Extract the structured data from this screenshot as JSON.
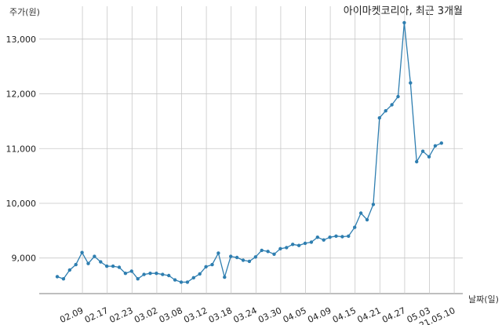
{
  "chart_data": {
    "type": "line",
    "title": "아이마켓코리아, 최근 3개월",
    "ylabel": "주가(원)",
    "xlabel": "날짜(일)",
    "ylim": [
      8350,
      13600
    ],
    "yticks": [
      9000,
      10000,
      11000,
      12000,
      13000
    ],
    "ytick_labels": [
      "9,000",
      "10,000",
      "11,000",
      "12,000",
      "13,000"
    ],
    "xticks": [
      {
        "index": 4,
        "label": "02.09"
      },
      {
        "index": 8,
        "label": "02.17"
      },
      {
        "index": 12,
        "label": "02.23"
      },
      {
        "index": 16,
        "label": "03.02"
      },
      {
        "index": 20,
        "label": "03.08"
      },
      {
        "index": 24,
        "label": "03.12"
      },
      {
        "index": 28,
        "label": "03.18"
      },
      {
        "index": 32,
        "label": "03.24"
      },
      {
        "index": 36,
        "label": "03.30"
      },
      {
        "index": 40,
        "label": "04.05"
      },
      {
        "index": 44,
        "label": "04.09"
      },
      {
        "index": 48,
        "label": "04.15"
      },
      {
        "index": 52,
        "label": "04.21"
      },
      {
        "index": 56,
        "label": "04.27"
      },
      {
        "index": 60,
        "label": "05.03"
      },
      {
        "index": 64,
        "label": "21.05.10"
      }
    ],
    "grid": true,
    "series": [
      {
        "color": "#2e7eb0",
        "values": [
          8660,
          8620,
          8780,
          8880,
          9100,
          8900,
          9030,
          8930,
          8850,
          8850,
          8830,
          8720,
          8760,
          8620,
          8700,
          8720,
          8720,
          8700,
          8680,
          8600,
          8560,
          8560,
          8640,
          8710,
          8840,
          8880,
          9090,
          8650,
          9030,
          9010,
          8960,
          8940,
          9020,
          9140,
          9120,
          9070,
          9170,
          9190,
          9250,
          9230,
          9270,
          9290,
          9380,
          9330,
          9380,
          9400,
          9390,
          9400,
          9560,
          9820,
          9700,
          9980,
          11560,
          11690,
          11800,
          11950,
          13300,
          12200,
          10760,
          10950,
          10850,
          11050,
          11100
        ]
      }
    ]
  }
}
